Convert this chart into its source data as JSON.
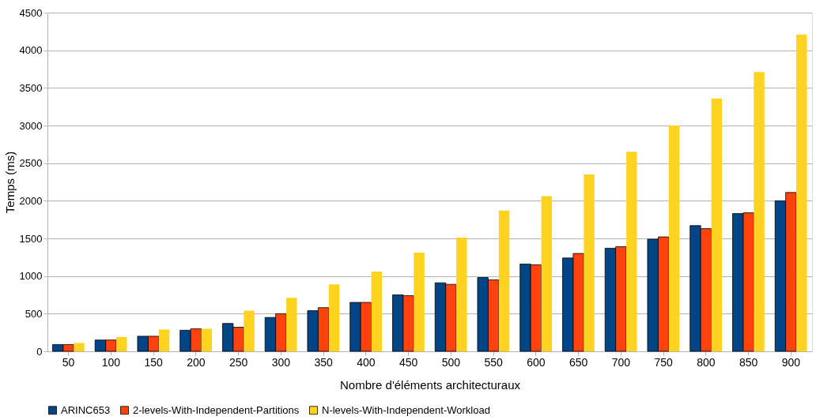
{
  "chart_data": {
    "type": "bar",
    "xlabel": "Nombre d'éléments architecturaux",
    "ylabel": "Temps (ms)",
    "categories": [
      "50",
      "100",
      "150",
      "200",
      "250",
      "300",
      "350",
      "400",
      "450",
      "500",
      "550",
      "600",
      "650",
      "700",
      "750",
      "800",
      "850",
      "900"
    ],
    "series": [
      {
        "name": "ARINC653",
        "color": "#004586",
        "values": [
          90,
          150,
          200,
          280,
          370,
          450,
          540,
          650,
          750,
          910,
          980,
          1160,
          1240,
          1370,
          1490,
          1670,
          1830,
          2000
        ]
      },
      {
        "name": "2-levels-With-Independent-Partitions",
        "color": "#ff420e",
        "values": [
          90,
          150,
          200,
          300,
          320,
          500,
          580,
          650,
          740,
          890,
          950,
          1150,
          1300,
          1390,
          1520,
          1630,
          1840,
          2110
        ]
      },
      {
        "name": "N-levels-With-Independent-Workload",
        "color": "#ffd320",
        "values": [
          110,
          190,
          290,
          300,
          540,
          710,
          890,
          1060,
          1310,
          1510,
          1870,
          2060,
          2350,
          2650,
          3000,
          3360,
          3710,
          4210
        ]
      }
    ],
    "ylim": [
      0,
      4500
    ],
    "yticks": [
      0,
      500,
      1000,
      1500,
      2000,
      2500,
      3000,
      3500,
      4000,
      4500
    ],
    "grid": "y",
    "legend": "bottom"
  }
}
